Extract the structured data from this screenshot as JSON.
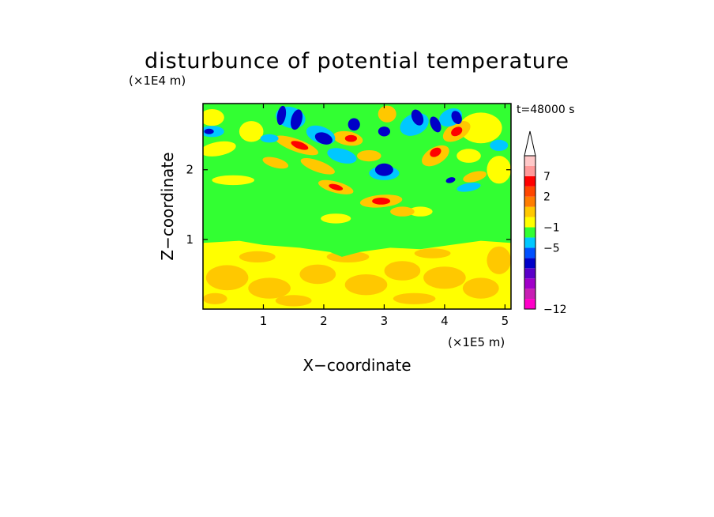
{
  "chart_data": {
    "type": "heatmap",
    "title": "disturbunce of potential temperature",
    "xlabel": "X−coordinate",
    "ylabel": "Z−coordinate",
    "x_scale_label": "(×1E5 m)",
    "y_scale_label": "(×1E4 m)",
    "time_label": "t=48000 s",
    "xlim": [
      0,
      5.1
    ],
    "ylim": [
      0,
      2.95
    ],
    "x_ticks": [
      "1",
      "2",
      "3",
      "4",
      "5"
    ],
    "y_ticks": [
      "1",
      "2"
    ],
    "colorbar": {
      "tick_labels": [
        "7",
        "2",
        "−1",
        "−5",
        "−12"
      ],
      "levels": [
        {
          "color": "#ff00c8"
        },
        {
          "color": "#c81eb4"
        },
        {
          "color": "#a000c8"
        },
        {
          "color": "#5a00c8"
        },
        {
          "color": "#0000c8"
        },
        {
          "color": "#0050ff"
        },
        {
          "color": "#00c8ff"
        },
        {
          "color": "#32ff32"
        },
        {
          "color": "#ffff00"
        },
        {
          "color": "#ffc800"
        },
        {
          "color": "#ff7d00"
        },
        {
          "color": "#ff4600"
        },
        {
          "color": "#ff0000"
        },
        {
          "color": "#ff9999"
        },
        {
          "color": "#ffc8c8"
        }
      ]
    },
    "regions": {
      "lower": "warm (+1 to +2, yellow/orange)",
      "middle": "near zero (green)",
      "upper": "alternating wave pattern of warm (orange/red) and cold (blue/navy) anomalies"
    }
  }
}
